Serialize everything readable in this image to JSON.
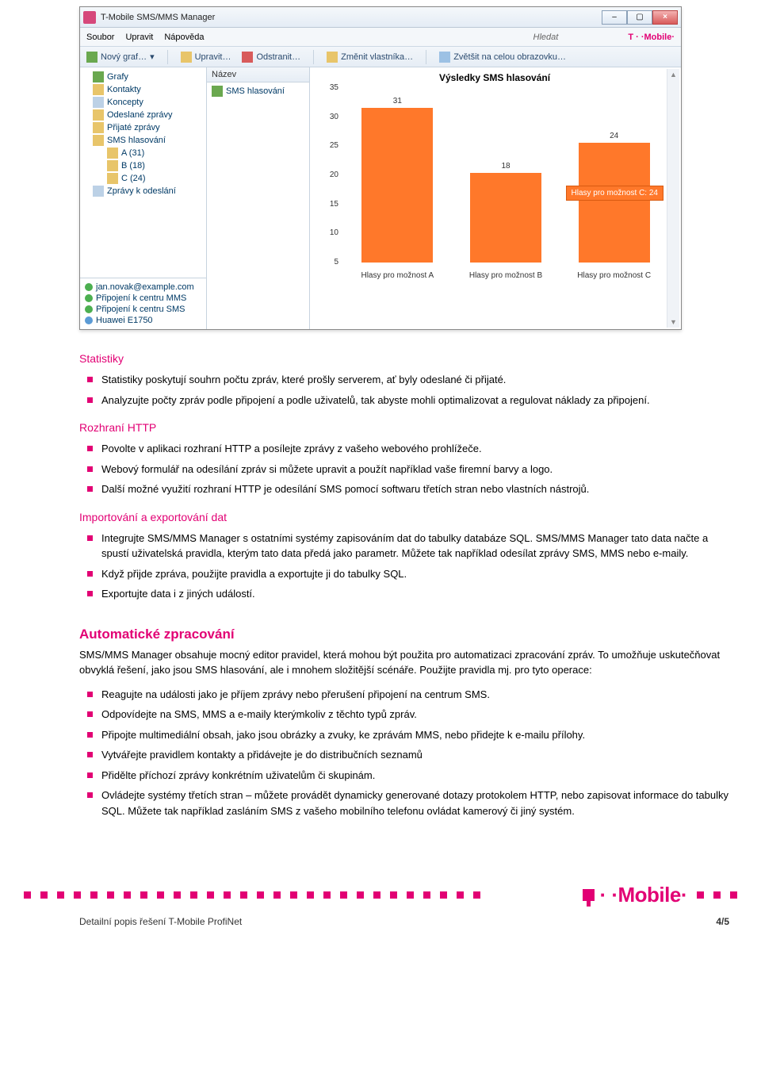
{
  "app": {
    "title": "T-Mobile SMS/MMS Manager",
    "menu": {
      "file": "Soubor",
      "edit": "Upravit",
      "help": "Nápověda",
      "search_placeholder": "Hledat",
      "brand": "T · ·Mobile·"
    },
    "toolbar": {
      "new_graph": "Nový graf…",
      "edit": "Upravit…",
      "delete": "Odstranit…",
      "change_owner": "Změnit vlastníka…",
      "fullscreen": "Zvětšit na celou obrazovku…"
    },
    "tree": {
      "items": [
        {
          "label": "Grafy",
          "icon": "chart"
        },
        {
          "label": "Kontakty",
          "icon": "folder"
        },
        {
          "label": "Koncepty",
          "icon": "page"
        },
        {
          "label": "Odeslané zprávy",
          "icon": "folder"
        },
        {
          "label": "Přijaté zprávy",
          "icon": "folder"
        },
        {
          "label": "SMS hlasování",
          "icon": "folder"
        }
      ],
      "sub": [
        {
          "label": "A (31)"
        },
        {
          "label": "B (18)"
        },
        {
          "label": "C (24)"
        }
      ],
      "last": {
        "label": "Zprávy k odeslání",
        "icon": "page"
      }
    },
    "status": {
      "items": [
        {
          "label": "jan.novak@example.com",
          "color": "green"
        },
        {
          "label": "Připojení k centru MMS",
          "color": "green"
        },
        {
          "label": "Připojení k centru SMS",
          "color": "green"
        },
        {
          "label": "Huawei E1750",
          "color": "blue"
        }
      ]
    },
    "list": {
      "header": "Název",
      "row": "SMS hlasování"
    },
    "chart": {
      "title": "Výsledky SMS hlasování",
      "type": "bar",
      "categories": [
        "Hlasy pro možnost A",
        "Hlasy pro možnost B",
        "Hlasy pro možnost C"
      ],
      "values": [
        31,
        18,
        24
      ],
      "bar_color": "#ff782a",
      "ylim": [
        5,
        35
      ],
      "ytick_step": 5,
      "yticks": [
        35,
        30,
        25,
        20,
        15,
        10,
        5
      ],
      "tooltip": "Hlasy pro možnost C: 24",
      "background_color": "#ffffff",
      "label_fontsize": 10
    }
  },
  "doc": {
    "sec1_h": "Statistiky",
    "sec1": [
      "Statistiky poskytují souhrn počtu zpráv, které prošly serverem, ať byly odeslané či přijaté.",
      "Analyzujte počty zpráv podle připojení a podle uživatelů, tak abyste mohli optimalizovat a regulovat náklady za připojení."
    ],
    "sec2_h": "Rozhraní HTTP",
    "sec2": [
      "Povolte v aplikaci rozhraní HTTP a posílejte zprávy z vašeho webového prohlížeče.",
      "Webový formulář na odesílání zpráv si můžete upravit a použít například vaše firemní barvy a logo.",
      "Další možné využití rozhraní HTTP je odesílání SMS pomocí softwaru třetích stran nebo vlastních nástrojů."
    ],
    "sec3_h": "Importování a exportování dat",
    "sec3": [
      "Integrujte SMS/MMS Manager s ostatními systémy zapisováním dat do tabulky databáze SQL. SMS/MMS Manager tato data načte a spustí uživatelská pravidla, kterým tato data předá jako parametr. Můžete tak například odesílat zprávy SMS, MMS nebo e-maily.",
      "Když přijde zpráva, použijte pravidla a exportujte ji do tabulky SQL.",
      "Exportujte data i z jiných událostí."
    ],
    "sec4_h": "Automatické zpracování",
    "sec4_p": "SMS/MMS Manager obsahuje mocný editor pravidel, která mohou být použita pro automatizaci zpracování zpráv. To umožňuje uskutečňovat obvyklá řešení, jako jsou SMS hlasování, ale i mnohem složitější scénáře. Použijte pravidla mj. pro tyto operace:",
    "sec4": [
      "Reagujte na události jako je příjem zprávy nebo přerušení připojení na centrum SMS.",
      "Odpovídejte na SMS, MMS a e-maily kterýmkoliv z těchto typů zpráv.",
      "Připojte multimediální obsah, jako jsou obrázky a zvuky, ke zprávám MMS, nebo přidejte k e-mailu přílohy.",
      "Vytvářejte pravidlem kontakty a přidávejte je do distribučních seznamů",
      "Přidělte příchozí zprávy konkrétním uživatelům či skupinám.",
      "Ovládejte systémy třetích stran – můžete provádět dynamicky generované dotazy protokolem HTTP, nebo zapisovat informace do tabulky SQL. Můžete tak například zasláním SMS z vašeho mobilního telefonu ovládat kamerový či jiný systém."
    ]
  },
  "footer": {
    "doc_title": "Detailní popis řešení T-Mobile ProfiNet",
    "page": "4/5",
    "brand": "· ·Mobile·"
  },
  "colors": {
    "magenta": "#e20074",
    "orange": "#ff782a"
  }
}
